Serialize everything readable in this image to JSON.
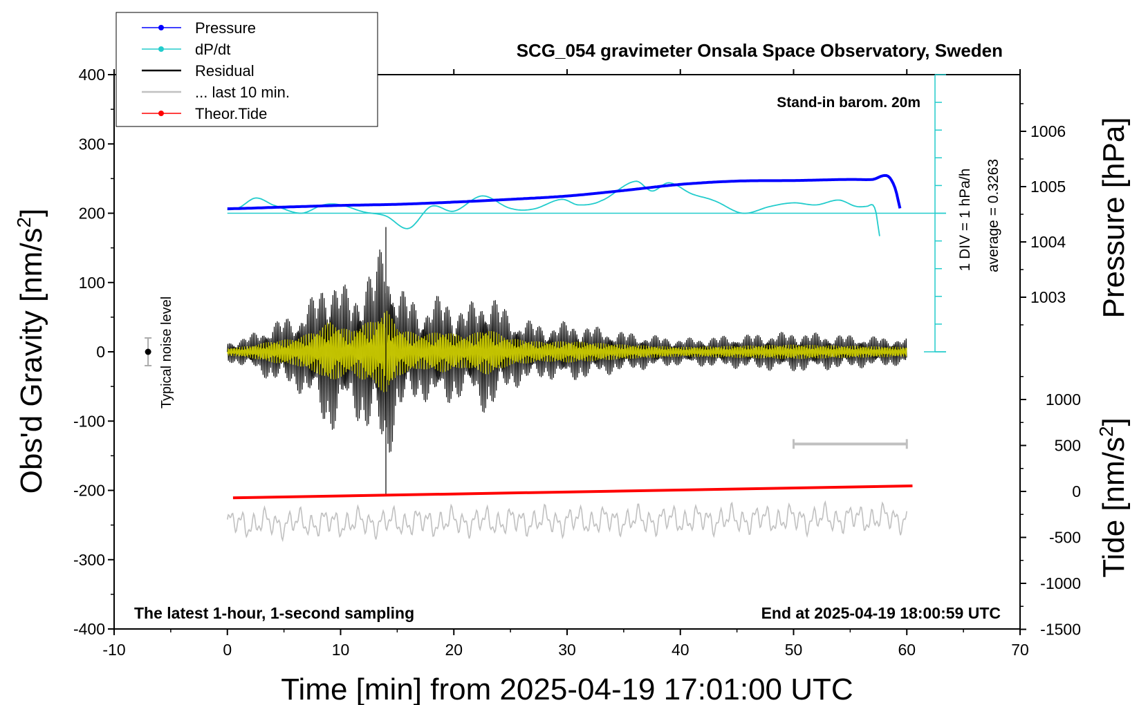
{
  "chart_data": {
    "type": "line",
    "title": "SCG_054 gravimeter Onsala Space Observatory, Sweden",
    "subtitle_left": "The latest 1-hour, 1-second sampling",
    "subtitle_right": "End at 2025-04-19 18:00:59 UTC",
    "barometer_note": "Stand-in barom. 20m",
    "xlabel": "Time [min] from 2025-04-19 17:01:00 UTC",
    "ylabel_left_base": "Obs'd Gravity [nm/s",
    "ylabel_left_sup": "2",
    "ylabel_left_end": "]",
    "ylabel_right_pressure": "Pressure [hPa]",
    "ylabel_right_tide_base": "Tide [nm/s",
    "ylabel_right_tide_sup": "2",
    "ylabel_right_tide_end": "]",
    "xlim": [
      -10,
      70
    ],
    "ylim": [
      -400,
      400
    ],
    "x_ticks": [
      "-10",
      "0",
      "10",
      "20",
      "30",
      "40",
      "50",
      "60",
      "70"
    ],
    "x_tick_values": [
      -10,
      0,
      10,
      20,
      30,
      40,
      50,
      60,
      70
    ],
    "y_ticks": [
      "400",
      "300",
      "200",
      "100",
      "0",
      "-100",
      "-200",
      "-300",
      "-400"
    ],
    "y_tick_values": [
      400,
      300,
      200,
      100,
      0,
      -100,
      -200,
      -300,
      -400
    ],
    "pressure_ticks": [
      "1006",
      "1005",
      "1004",
      "1003"
    ],
    "pressure_tick_values": [
      1006,
      1005,
      1004,
      1003
    ],
    "tide_ticks": [
      "1000",
      "500",
      "0",
      "-500",
      "-1000",
      "-1500"
    ],
    "tide_tick_values": [
      1000,
      500,
      0,
      -500,
      -1000,
      -1500
    ],
    "dpdt_scale_label": "1 DIV = 1 hPa/h",
    "dpdt_average_label": "average = 0.3263",
    "noise_label": "Typical noise level",
    "noise_level": {
      "x": -7,
      "center": 0,
      "half_range": 20
    },
    "last10_bar": {
      "x_start": 50,
      "x_end": 60,
      "y": -133
    },
    "legend": [
      {
        "label": "Pressure",
        "color": "#0000ff",
        "marker": true
      },
      {
        "label": "dP/dt",
        "color": "#22cccc",
        "marker": true
      },
      {
        "label": "Residual",
        "color": "#000000",
        "marker": false
      },
      {
        "label": "... last 10 min.",
        "color": "#c0c0c0",
        "marker": false
      },
      {
        "label": "Theor.Tide",
        "color": "#ff0000",
        "marker": true
      }
    ],
    "colors": {
      "pressure": "#0000ff",
      "dpdt": "#22cccc",
      "residual": "#000000",
      "residual_filtered": "#d6d600",
      "last10": "#c0c0c0",
      "tide": "#ff0000"
    },
    "series": [
      {
        "name": "Pressure",
        "axis": "pressure_hPa",
        "x": [
          0,
          5,
          10,
          15,
          20,
          25,
          30,
          35,
          40,
          45,
          50,
          55,
          57,
          58,
          58.5,
          59,
          59.5
        ],
        "values": [
          1004.6,
          1004.63,
          1004.66,
          1004.68,
          1004.72,
          1004.77,
          1004.83,
          1004.93,
          1005.04,
          1005.1,
          1005.11,
          1005.13,
          1005.13,
          1005.2,
          1005.16,
          1004.95,
          1004.55
        ]
      },
      {
        "name": "dP/dt",
        "axis": "gravity_plot_units",
        "x": [
          0,
          1,
          2.5,
          4,
          6.5,
          8.5,
          10,
          12,
          14,
          16,
          18,
          20,
          22.5,
          25,
          27,
          29.5,
          31,
          33,
          36,
          37.5,
          39,
          41,
          43,
          45.5,
          48,
          50,
          52,
          54,
          55.5,
          56.5,
          57,
          57.3,
          57.6
        ],
        "values": [
          205,
          208,
          222,
          212,
          200,
          212,
          212,
          202,
          196,
          178,
          210,
          203,
          225,
          207,
          206,
          220,
          212,
          218,
          246,
          232,
          244,
          228,
          218,
          200,
          210,
          215,
          212,
          219,
          210,
          210,
          212,
          200,
          167
        ]
      },
      {
        "name": "Theor.Tide",
        "axis": "tide_nm_s2",
        "x": [
          0.5,
          60.5
        ],
        "values": [
          -70,
          60
        ]
      },
      {
        "name": "Residual",
        "axis": "gravity_nm_s2",
        "x": [
          0,
          2,
          4,
          6,
          8,
          9,
          10,
          11,
          12,
          13,
          13.5,
          14,
          15,
          17,
          19,
          21,
          23,
          25,
          28,
          30,
          35,
          40,
          45,
          50,
          55,
          60
        ],
        "values": [
          15,
          25,
          45,
          55,
          90,
          125,
          105,
          85,
          120,
          125,
          155,
          180,
          100,
          70,
          85,
          65,
          95,
          55,
          40,
          45,
          30,
          20,
          25,
          30,
          25,
          20
        ]
      },
      {
        "name": "... last 10 min.",
        "axis": "gravity_plot_units",
        "x": [
          0,
          60
        ],
        "values": [
          -248,
          -240
        ]
      }
    ]
  }
}
